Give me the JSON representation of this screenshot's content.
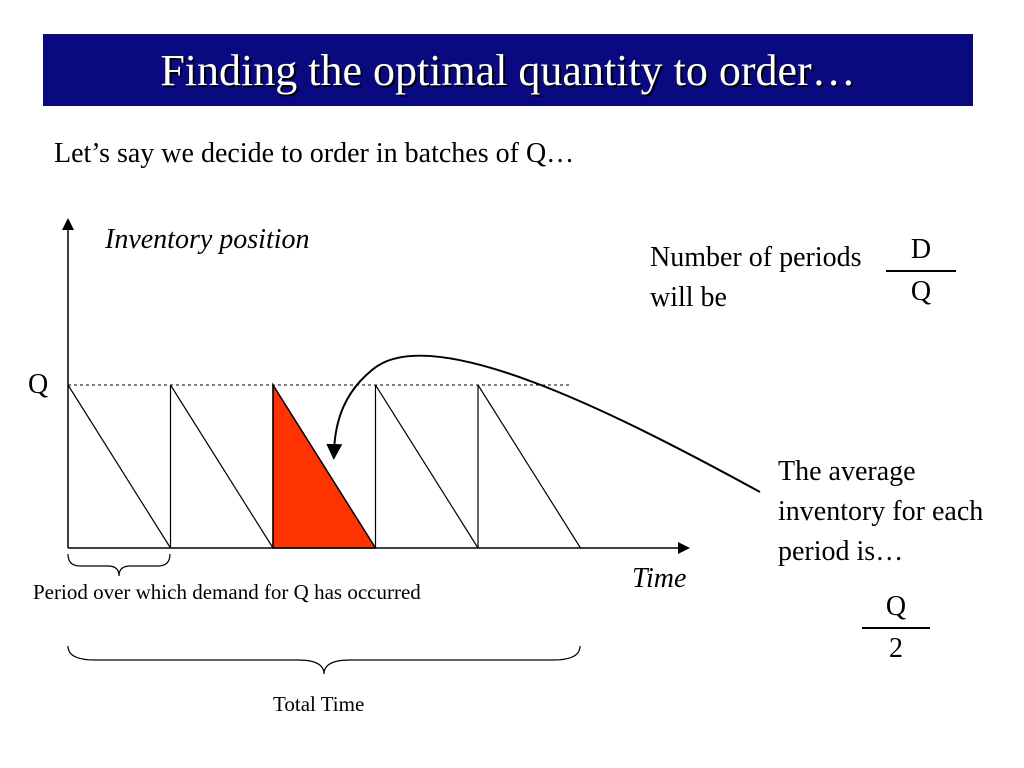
{
  "title": "Finding the optimal quantity to order…",
  "subtitle": "Let’s say we decide to order in batches of Q…",
  "diagram": {
    "y_axis_label": "Inventory position",
    "x_axis_label": "Time",
    "q_level_label": "Q",
    "highlight_color": "#ff3300",
    "period_label": "Period over which demand for Q has occurred",
    "total_label": "Total Time",
    "cycle_count": 5,
    "highlighted_cycle": 3
  },
  "periods_text": "Number of periods will be",
  "periods_fraction": {
    "numerator": "D",
    "denominator": "Q"
  },
  "avg_text": "The average inventory for each period is…",
  "avg_fraction": {
    "numerator": "Q",
    "denominator": "2"
  },
  "colors": {
    "title_bar": "#0a0a80",
    "title_text": "#ffffff"
  }
}
